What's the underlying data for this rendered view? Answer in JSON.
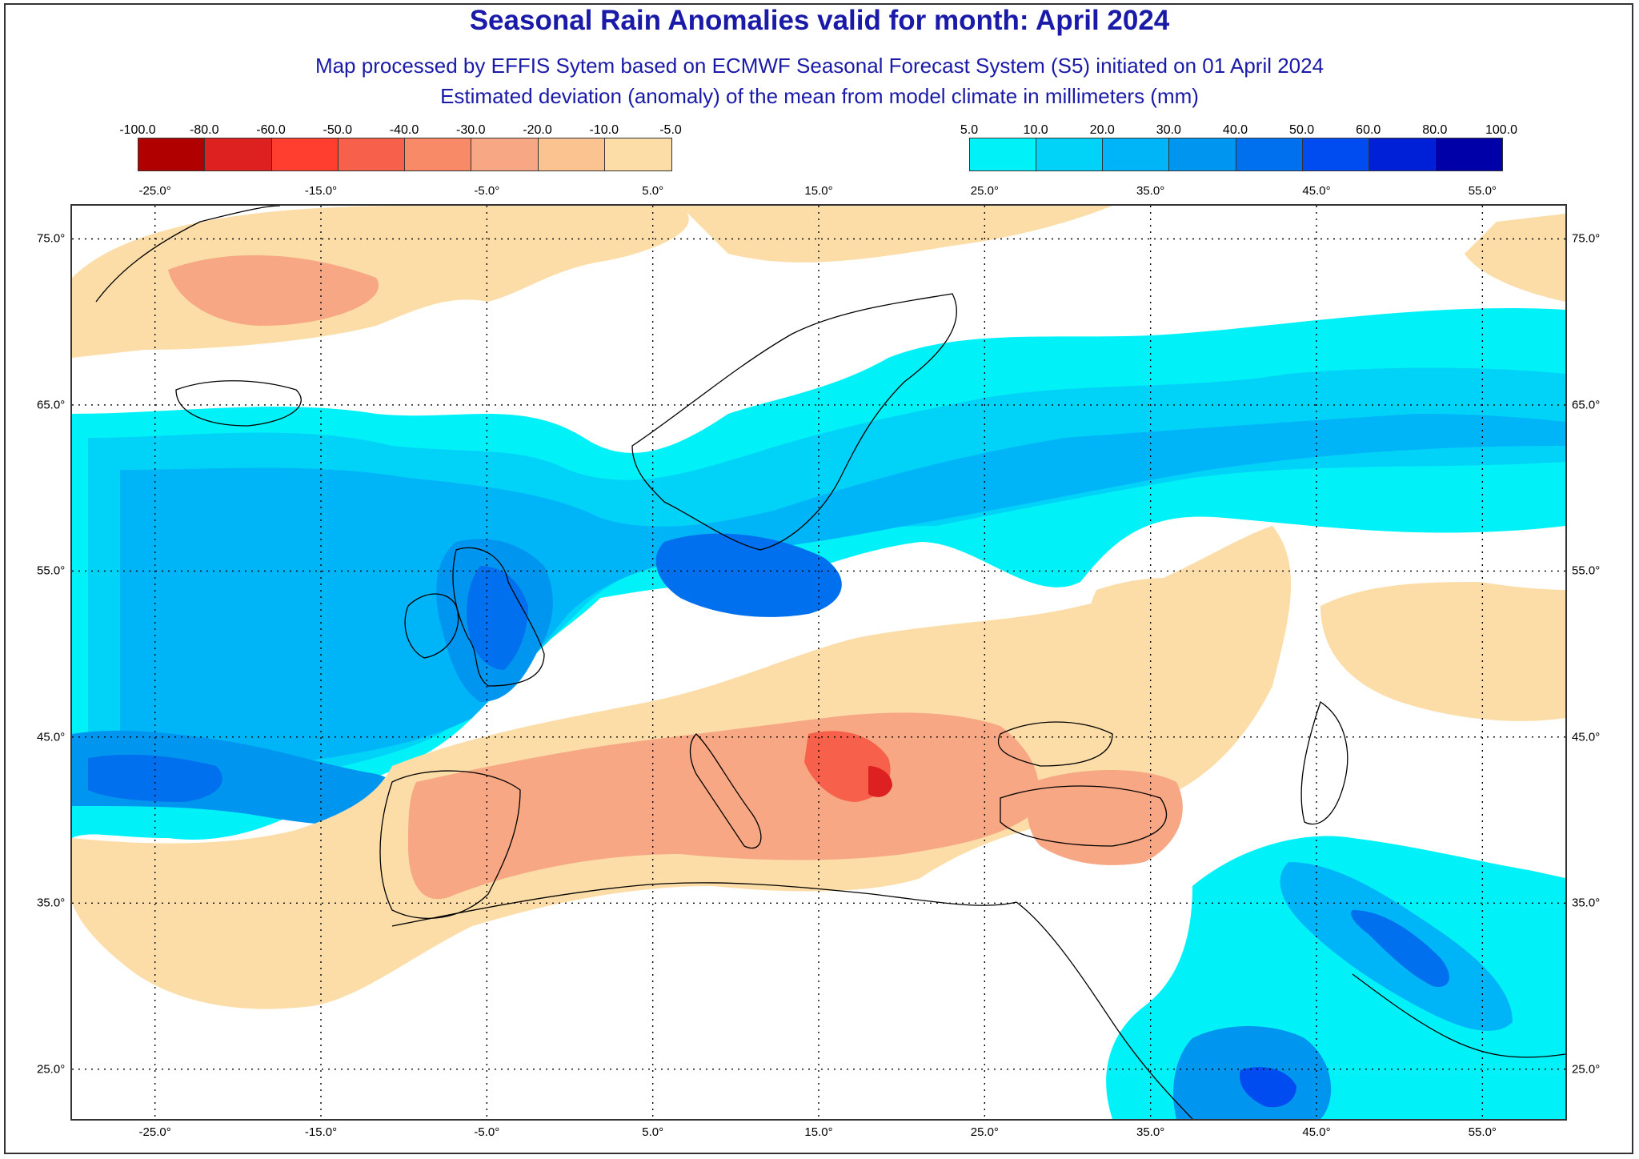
{
  "title": "Seasonal Rain Anomalies valid for month: April 2024",
  "subtitle1": "Map processed by EFFIS Sytem based on ECMWF Seasonal Forecast System (S5) initiated on 01 April 2024",
  "subtitle2": "Estimated deviation (anomaly) of the mean from model climate in millimeters (mm)",
  "legend_negative": {
    "ticks": [
      "-100.0",
      "-80.0",
      "-60.0",
      "-50.0",
      "-40.0",
      "-30.0",
      "-20.0",
      "-10.0",
      "-5.0"
    ],
    "colors": [
      "#b00000",
      "#dd2020",
      "#ff3e30",
      "#f7604a",
      "#f98a68",
      "#f7a783",
      "#fac38f",
      "#fcdda8"
    ]
  },
  "legend_positive": {
    "ticks": [
      "5.0",
      "10.0",
      "20.0",
      "30.0",
      "40.0",
      "50.0",
      "60.0",
      "80.0",
      "100.0"
    ],
    "colors": [
      "#00f2f8",
      "#00d2f8",
      "#00b4f8",
      "#0096f0",
      "#0070ee",
      "#004cf0",
      "#0020d8",
      "#0000a8"
    ]
  },
  "lon_labels": [
    "-25.0°",
    "-15.0°",
    "-5.0°",
    "5.0°",
    "15.0°",
    "25.0°",
    "35.0°",
    "45.0°",
    "55.0°"
  ],
  "lat_labels": [
    "75.0°",
    "65.0°",
    "55.0°",
    "45.0°",
    "35.0°",
    "25.0°"
  ],
  "map": {
    "lon_range": [
      -30,
      60
    ],
    "lat_range": [
      22,
      77
    ],
    "gridlines": "dotted"
  }
}
